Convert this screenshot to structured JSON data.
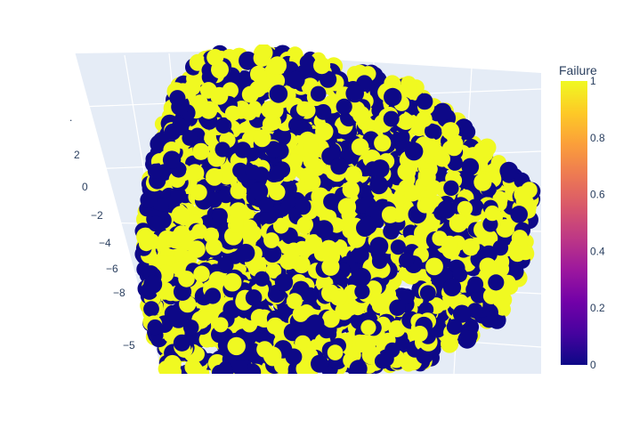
{
  "chart_data": {
    "type": "scatter",
    "subtype": "3d-scatter",
    "title": "",
    "axis_tick_labels": {
      "left_axis": [
        "2",
        "0",
        "−2",
        "−4",
        "−6",
        "−8"
      ],
      "left_axis_lower": [
        "−5"
      ]
    },
    "color_variable": "Failure",
    "colorbar": {
      "title": "Failure",
      "range": [
        0,
        1
      ],
      "ticks": [
        "1",
        "0.8",
        "0.6",
        "0.4",
        "0.2",
        "0"
      ],
      "colorscale": "plasma"
    },
    "categories": [
      0,
      1
    ],
    "category_colors": {
      "0": "#0d0887",
      "1": "#f0f921"
    },
    "estimated_share_failure_1": 0.5,
    "legend": "colorbar right",
    "grid": true,
    "scene_background": "#e5ecf6"
  }
}
